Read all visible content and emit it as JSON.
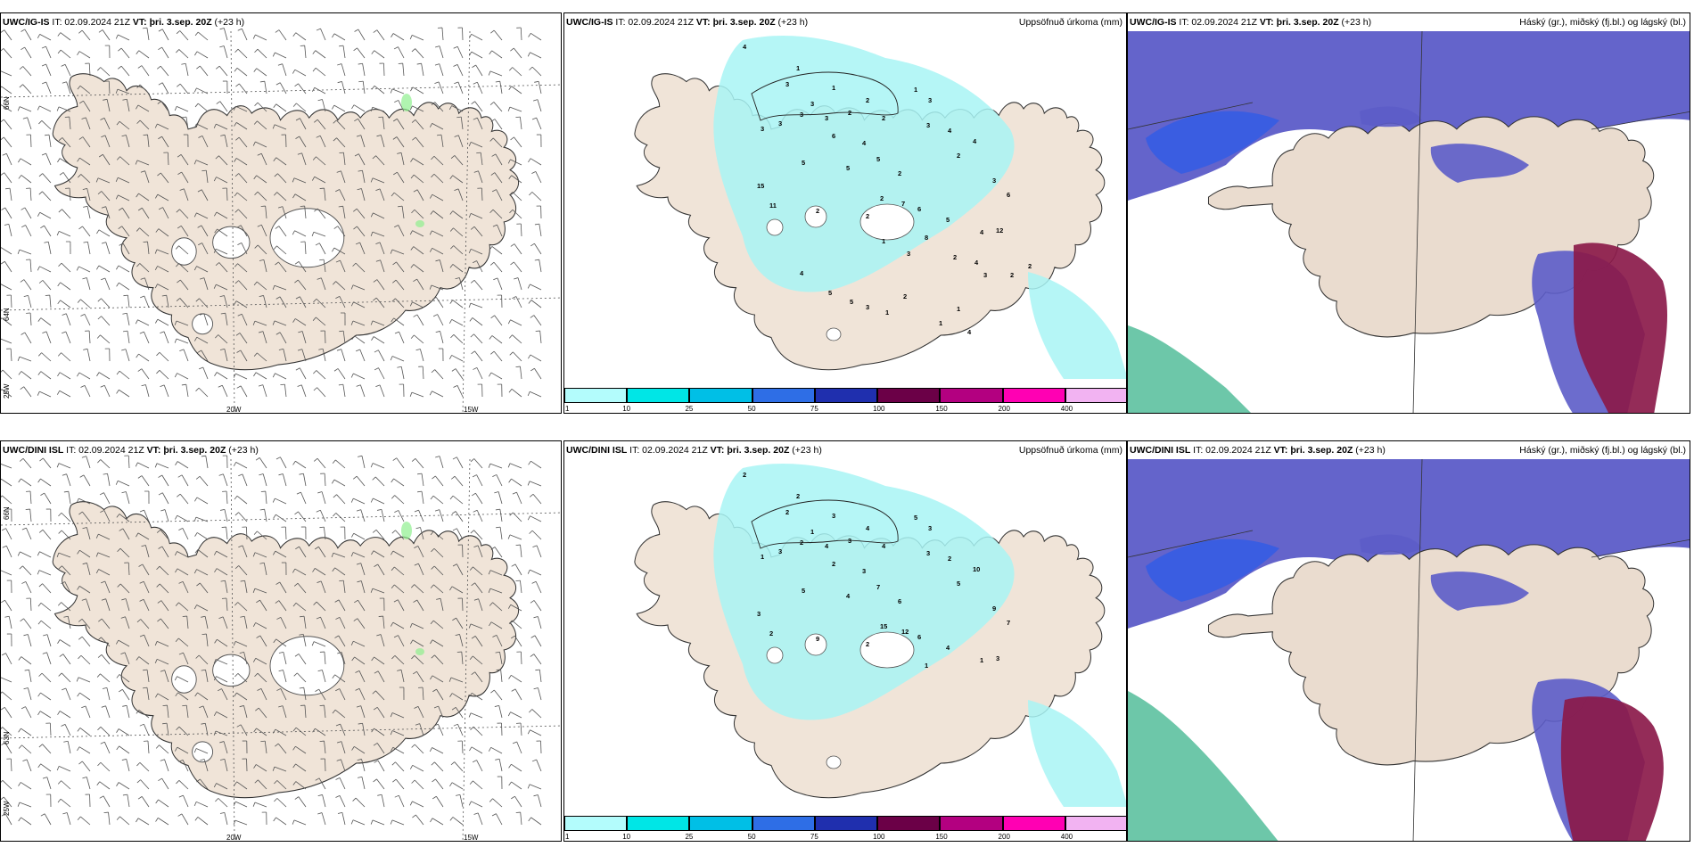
{
  "panels": [
    {
      "id": "wind-ig",
      "model": "UWC/IG-IS",
      "it": " IT: 02.09.2024 21Z ",
      "vt": "VT: þri. 3.sep. 20Z",
      "lead": " (+23 h)",
      "right": ""
    },
    {
      "id": "precip-ig",
      "model": "UWC/IG-IS",
      "it": " IT: 02.09.2024 21Z ",
      "vt": "VT: þri. 3.sep. 20Z",
      "lead": " (+23 h)",
      "right": "Uppsöfnuð úrkoma (mm)"
    },
    {
      "id": "cloud-ig",
      "model": "UWC/IG-IS",
      "it": " IT: 02.09.2024 21Z ",
      "vt": "VT: þri. 3.sep. 20Z",
      "lead": " (+23 h)",
      "right": "Háský (gr.), miðský (fj.bl.) og lágský (bl.)"
    },
    {
      "id": "wind-dini",
      "model": "UWC/DINI ISL",
      "it": " IT: 02.09.2024 21Z ",
      "vt": "VT: þri. 3.sep. 20Z",
      "lead": " (+23 h)",
      "right": ""
    },
    {
      "id": "precip-dini",
      "model": "UWC/DINI ISL",
      "it": " IT: 02.09.2024 21Z ",
      "vt": "VT: þri. 3.sep. 20Z",
      "lead": " (+23 h)",
      "right": "Uppsöfnuð úrkoma (mm)"
    },
    {
      "id": "cloud-dini",
      "model": "UWC/DINI ISL",
      "it": " IT: 02.09.2024 21Z ",
      "vt": "VT: þri. 3.sep. 20Z",
      "lead": " (+23 h)",
      "right": "Háský (gr.), miðský (fj.bl.) og lágský (bl.)"
    }
  ],
  "axis_labels": {
    "lon20": "20W",
    "lon15": "15W",
    "lon25": "25W",
    "lat66": "66N",
    "lat64": "64N",
    "lat63": "63N"
  },
  "colorbar": {
    "ticks": [
      "1",
      "10",
      "25",
      "50",
      "75",
      "100",
      "150",
      "200",
      "400"
    ],
    "colors": [
      "#b3fcfc",
      "#00e6e6",
      "#00bfe6",
      "#2e6ee6",
      "#1f2fae",
      "#6b0047",
      "#b30080",
      "#ff00b3",
      "#f2b3f2"
    ]
  },
  "colors": {
    "land": "#f0e4d8",
    "precip": "#a8f4f4",
    "mid_cloud": "#5c5cc8",
    "low_cloud": "#2f5be6",
    "high_cloud": "#8b1a4a",
    "fog_green": "#3cb48c"
  },
  "precip_values_ig": [
    "4",
    "1",
    "3",
    "3",
    "1",
    "3",
    "3",
    "3",
    "3",
    "2",
    "2",
    "2",
    "1",
    "3",
    "5",
    "6",
    "4",
    "5",
    "5",
    "2",
    "3",
    "4",
    "4",
    "2",
    "3",
    "6",
    "2",
    "7",
    "6",
    "5",
    "8",
    "4",
    "12",
    "15",
    "11",
    "2",
    "2",
    "1",
    "3",
    "2",
    "4",
    "2",
    "2",
    "3",
    "4",
    "5",
    "5",
    "3",
    "1",
    "2",
    "1",
    "1",
    "4"
  ],
  "precip_values_dini": [
    "2",
    "2",
    "2",
    "1",
    "3",
    "1",
    "3",
    "2",
    "4",
    "3",
    "4",
    "4",
    "5",
    "3",
    "5",
    "2",
    "3",
    "4",
    "7",
    "6",
    "3",
    "2",
    "10",
    "5",
    "9",
    "7",
    "15",
    "12",
    "6",
    "4",
    "1",
    "1",
    "3",
    "3",
    "2",
    "9",
    "2"
  ]
}
